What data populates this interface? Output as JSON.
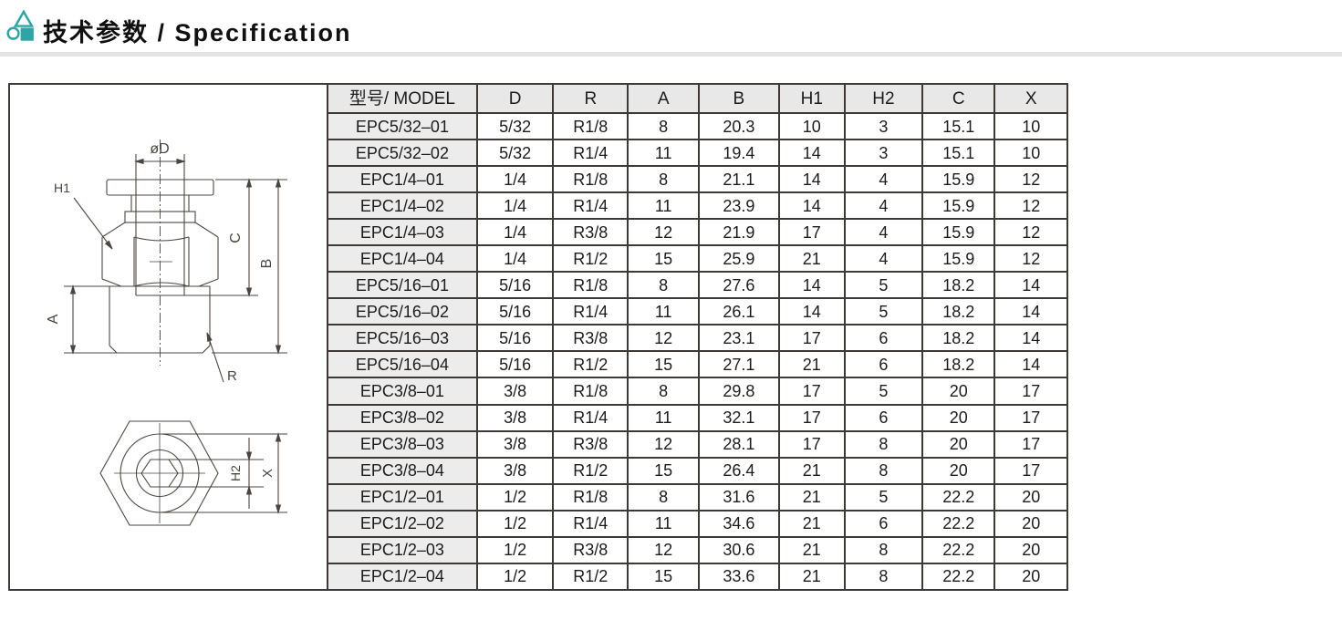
{
  "header": {
    "title": "技术参数 / Specification"
  },
  "colors": {
    "accent": "#2da5a5",
    "table_header_bg": "#e8e8e8",
    "model_column_bg": "#ececec",
    "table_border": "#3c3936",
    "drawing_line": "#4a4540"
  },
  "drawing": {
    "labels": {
      "diameter": "øD",
      "h1": "H1",
      "c": "C",
      "b": "B",
      "a": "A",
      "r": "R",
      "h2": "H2",
      "x": "X"
    }
  },
  "table": {
    "columns": [
      "型号/ MODEL",
      "D",
      "R",
      "A",
      "B",
      "H1",
      "H2",
      "C",
      "X"
    ],
    "rows": [
      [
        "EPC5/32–01",
        "5/32",
        "R1/8",
        "8",
        "20.3",
        "10",
        "3",
        "15.1",
        "10"
      ],
      [
        "EPC5/32–02",
        "5/32",
        "R1/4",
        "11",
        "19.4",
        "14",
        "3",
        "15.1",
        "10"
      ],
      [
        "EPC1/4–01",
        "1/4",
        "R1/8",
        "8",
        "21.1",
        "14",
        "4",
        "15.9",
        "12"
      ],
      [
        "EPC1/4–02",
        "1/4",
        "R1/4",
        "11",
        "23.9",
        "14",
        "4",
        "15.9",
        "12"
      ],
      [
        "EPC1/4–03",
        "1/4",
        "R3/8",
        "12",
        "21.9",
        "17",
        "4",
        "15.9",
        "12"
      ],
      [
        "EPC1/4–04",
        "1/4",
        "R1/2",
        "15",
        "25.9",
        "21",
        "4",
        "15.9",
        "12"
      ],
      [
        "EPC5/16–01",
        "5/16",
        "R1/8",
        "8",
        "27.6",
        "14",
        "5",
        "18.2",
        "14"
      ],
      [
        "EPC5/16–02",
        "5/16",
        "R1/4",
        "11",
        "26.1",
        "14",
        "5",
        "18.2",
        "14"
      ],
      [
        "EPC5/16–03",
        "5/16",
        "R3/8",
        "12",
        "23.1",
        "17",
        "6",
        "18.2",
        "14"
      ],
      [
        "EPC5/16–04",
        "5/16",
        "R1/2",
        "15",
        "27.1",
        "21",
        "6",
        "18.2",
        "14"
      ],
      [
        "EPC3/8–01",
        "3/8",
        "R1/8",
        "8",
        "29.8",
        "17",
        "5",
        "20",
        "17"
      ],
      [
        "EPC3/8–02",
        "3/8",
        "R1/4",
        "11",
        "32.1",
        "17",
        "6",
        "20",
        "17"
      ],
      [
        "EPC3/8–03",
        "3/8",
        "R3/8",
        "12",
        "28.1",
        "17",
        "8",
        "20",
        "17"
      ],
      [
        "EPC3/8–04",
        "3/8",
        "R1/2",
        "15",
        "26.4",
        "21",
        "8",
        "20",
        "17"
      ],
      [
        "EPC1/2–01",
        "1/2",
        "R1/8",
        "8",
        "31.6",
        "21",
        "5",
        "22.2",
        "20"
      ],
      [
        "EPC1/2–02",
        "1/2",
        "R1/4",
        "11",
        "34.6",
        "21",
        "6",
        "22.2",
        "20"
      ],
      [
        "EPC1/2–03",
        "1/2",
        "R3/8",
        "12",
        "30.6",
        "21",
        "8",
        "22.2",
        "20"
      ],
      [
        "EPC1/2–04",
        "1/2",
        "R1/2",
        "15",
        "33.6",
        "21",
        "8",
        "22.2",
        "20"
      ]
    ]
  }
}
